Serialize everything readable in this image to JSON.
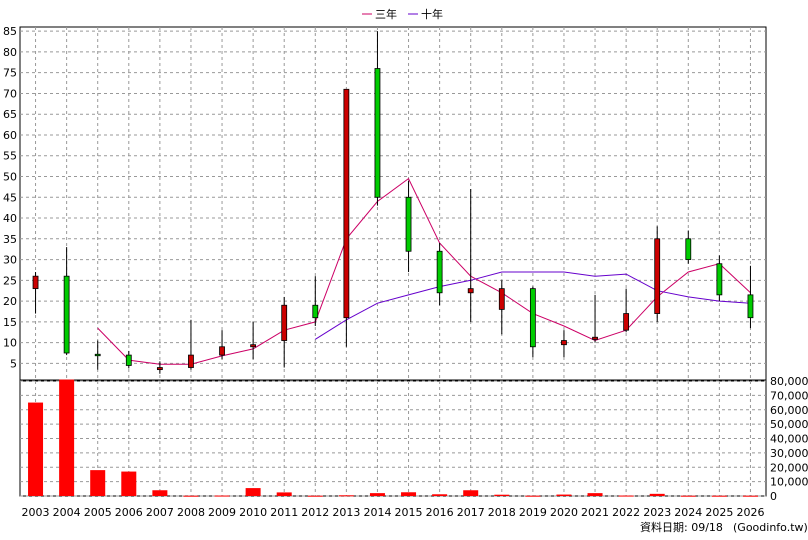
{
  "legend": {
    "items": [
      {
        "label": "三年",
        "color": "#cc0066"
      },
      {
        "label": "十年",
        "color": "#6600cc"
      }
    ]
  },
  "footer": {
    "date_label": "資料日期: 09/18",
    "source": "(Goodinfo.tw)"
  },
  "chart_data": [
    {
      "type": "candlestick",
      "categories": [
        "2003",
        "2004",
        "2005",
        "2006",
        "2007",
        "2008",
        "2009",
        "2010",
        "2011",
        "2012",
        "2013",
        "2014",
        "2015",
        "2016",
        "2017",
        "2018",
        "2019",
        "2020",
        "2021",
        "2022",
        "2023",
        "2024",
        "2025",
        "2026"
      ],
      "ylim": [
        1,
        86
      ],
      "yticks": [
        5,
        10,
        15,
        20,
        25,
        30,
        35,
        40,
        45,
        50,
        55,
        60,
        65,
        70,
        75,
        80,
        85
      ],
      "grid": true,
      "legend_position": "top-center",
      "up_color": "#cc0000",
      "down_color": "#00cc00",
      "candles": [
        {
          "open": 23,
          "close": 26,
          "high": 27,
          "low": 17
        },
        {
          "open": 26,
          "close": 7.5,
          "high": 33,
          "low": 7
        },
        {
          "open": 7.2,
          "close": 7.0,
          "high": 10.5,
          "low": 3.5
        },
        {
          "open": 7,
          "close": 4.5,
          "high": 8,
          "low": 3.8
        },
        {
          "open": 3.5,
          "close": 4,
          "high": 5.5,
          "low": 2.5
        },
        {
          "open": 4,
          "close": 7,
          "high": 15.5,
          "low": 3.5
        },
        {
          "open": 7,
          "close": 9,
          "high": 13,
          "low": 6
        },
        {
          "open": 9,
          "close": 9.5,
          "high": 15,
          "low": 6
        },
        {
          "open": 10.5,
          "close": 19,
          "high": 21,
          "low": 4
        },
        {
          "open": 19,
          "close": 16,
          "high": 26,
          "low": 14
        },
        {
          "open": 16,
          "close": 71,
          "high": 71,
          "low": 9
        },
        {
          "open": 76,
          "close": 45,
          "high": 85,
          "low": 43
        },
        {
          "open": 45,
          "close": 32,
          "high": 49,
          "low": 27
        },
        {
          "open": 32,
          "close": 22,
          "high": 34,
          "low": 19
        },
        {
          "open": 22,
          "close": 23,
          "high": 47,
          "low": 15
        },
        {
          "open": 18,
          "close": 23,
          "high": 25,
          "low": 12
        },
        {
          "open": 23,
          "close": 9,
          "high": 23.5,
          "low": 6.5
        },
        {
          "open": 9.5,
          "close": 10.5,
          "high": 13,
          "low": 6.5
        },
        {
          "open": 10.8,
          "close": 11.3,
          "high": 21.5,
          "low": 10
        },
        {
          "open": 13,
          "close": 17,
          "high": 23,
          "low": 12.5
        },
        {
          "open": 17,
          "close": 35,
          "high": 38,
          "low": 15
        },
        {
          "open": 35,
          "close": 30,
          "high": 37,
          "low": 29
        },
        {
          "open": 29,
          "close": 21.5,
          "high": 31,
          "low": 20
        },
        {
          "open": 21.5,
          "close": 16,
          "high": 28.5,
          "low": 13.5
        }
      ],
      "series": [
        {
          "name": "三年",
          "values": [
            null,
            null,
            13.5,
            5.8,
            4.8,
            4.8,
            6.8,
            8.5,
            13,
            15,
            35,
            44,
            49.5,
            34,
            26,
            22,
            17,
            14,
            10.5,
            13,
            21,
            27,
            29,
            22
          ]
        },
        {
          "name": "十年",
          "values": [
            null,
            null,
            null,
            null,
            null,
            null,
            null,
            null,
            null,
            10.8,
            15.5,
            19.5,
            21.5,
            23.5,
            25,
            27,
            27,
            27,
            26,
            26.5,
            22.5,
            21,
            20,
            19.5
          ]
        }
      ]
    },
    {
      "type": "bar",
      "categories": [
        "2003",
        "2004",
        "2005",
        "2006",
        "2007",
        "2008",
        "2009",
        "2010",
        "2011",
        "2012",
        "2013",
        "2014",
        "2015",
        "2016",
        "2017",
        "2018",
        "2019",
        "2020",
        "2021",
        "2022",
        "2023",
        "2024",
        "2025",
        "2026"
      ],
      "values": [
        65000,
        81000,
        18000,
        17000,
        4000,
        200,
        300,
        5500,
        2500,
        200,
        500,
        2000,
        2600,
        1200,
        4000,
        900,
        200,
        1000,
        2000,
        300,
        1500,
        200,
        200,
        200
      ],
      "ylim": [
        0,
        80000
      ],
      "yticks": [
        0,
        10000,
        20000,
        30000,
        40000,
        50000,
        60000,
        70000,
        80000
      ],
      "ytick_labels": [
        "0",
        "10,000",
        "20,000",
        "30,000",
        "40,000",
        "50,000",
        "60,000",
        "70,000",
        "80,000"
      ],
      "color": "#ff0000",
      "grid": true
    }
  ]
}
